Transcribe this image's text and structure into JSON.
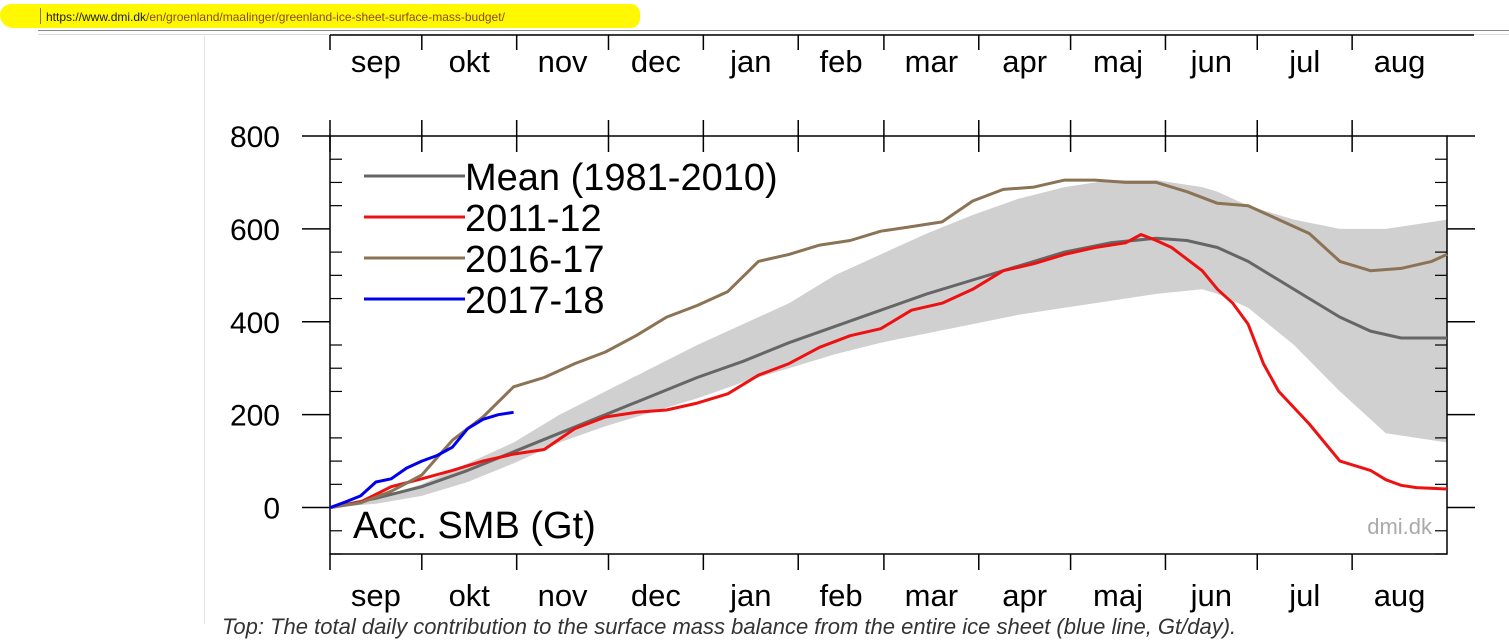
{
  "url_bar": {
    "domain": "https://www.dmi.dk",
    "path": "/en/groenland/maalinger/greenland-ice-sheet-surface-mass-budget/",
    "highlight_color": "#fff800"
  },
  "chart_data": {
    "type": "line",
    "months": [
      "sep",
      "okt",
      "nov",
      "dec",
      "jan",
      "feb",
      "mar",
      "apr",
      "maj",
      "jun",
      "jul",
      "aug"
    ],
    "ylim": [
      -100,
      800
    ],
    "xlim": [
      0,
      365
    ],
    "yticks": [
      0,
      200,
      400,
      600,
      800
    ],
    "ylabel": "Acc. SMB (Gt)",
    "watermark": "dmi.dk",
    "grid": false,
    "legend_position": "top-left",
    "band": {
      "color": "#d0d0d0",
      "x": [
        0,
        15,
        30,
        45,
        60,
        75,
        90,
        105,
        120,
        135,
        150,
        165,
        180,
        195,
        210,
        225,
        240,
        255,
        270,
        285,
        290,
        300,
        315,
        330,
        345,
        365
      ],
      "upper": [
        0,
        20,
        50,
        95,
        140,
        200,
        250,
        300,
        350,
        395,
        440,
        500,
        545,
        590,
        630,
        665,
        690,
        705,
        705,
        690,
        680,
        650,
        620,
        600,
        600,
        620
      ],
      "lower": [
        0,
        8,
        25,
        55,
        95,
        140,
        175,
        205,
        235,
        270,
        300,
        330,
        355,
        375,
        395,
        415,
        430,
        445,
        460,
        470,
        460,
        430,
        350,
        250,
        160,
        140
      ]
    },
    "series": [
      {
        "name": "Mean (1981-2010)",
        "color": "#666666",
        "width": 3,
        "x": [
          0,
          15,
          30,
          45,
          60,
          75,
          90,
          105,
          120,
          135,
          150,
          165,
          180,
          195,
          210,
          225,
          240,
          255,
          270,
          280,
          290,
          300,
          310,
          320,
          330,
          340,
          350,
          365
        ],
        "y": [
          0,
          20,
          45,
          80,
          120,
          160,
          200,
          240,
          280,
          315,
          355,
          390,
          425,
          460,
          490,
          520,
          550,
          570,
          580,
          575,
          560,
          530,
          490,
          450,
          410,
          380,
          365,
          365
        ]
      },
      {
        "name": "2011-12",
        "color": "#ee1111",
        "width": 3,
        "x": [
          0,
          10,
          20,
          30,
          40,
          50,
          60,
          70,
          80,
          90,
          100,
          110,
          120,
          130,
          140,
          150,
          160,
          170,
          180,
          190,
          200,
          210,
          220,
          230,
          240,
          250,
          260,
          265,
          270,
          275,
          280,
          285,
          290,
          295,
          300,
          305,
          310,
          320,
          330,
          340,
          345,
          350,
          355,
          365
        ],
        "y": [
          0,
          12,
          45,
          62,
          80,
          100,
          115,
          125,
          170,
          195,
          205,
          210,
          225,
          245,
          285,
          310,
          345,
          370,
          385,
          425,
          440,
          470,
          510,
          525,
          545,
          560,
          570,
          588,
          575,
          560,
          535,
          510,
          470,
          440,
          395,
          310,
          250,
          180,
          100,
          80,
          60,
          48,
          43,
          40
        ]
      },
      {
        "name": "2016-17",
        "color": "#8b7355",
        "width": 3,
        "x": [
          0,
          10,
          20,
          30,
          40,
          50,
          60,
          70,
          80,
          90,
          100,
          110,
          120,
          130,
          140,
          150,
          160,
          170,
          180,
          190,
          200,
          210,
          220,
          230,
          240,
          250,
          260,
          270,
          280,
          290,
          300,
          310,
          320,
          330,
          340,
          350,
          360,
          365
        ],
        "y": [
          0,
          10,
          35,
          70,
          145,
          195,
          260,
          280,
          310,
          335,
          370,
          410,
          435,
          465,
          530,
          545,
          565,
          575,
          595,
          605,
          615,
          660,
          685,
          690,
          705,
          705,
          700,
          700,
          680,
          655,
          650,
          620,
          590,
          530,
          510,
          515,
          530,
          545
        ]
      },
      {
        "name": "2017-18",
        "color": "#0000ee",
        "width": 3,
        "x": [
          0,
          5,
          10,
          15,
          20,
          25,
          30,
          35,
          40,
          45,
          50,
          55,
          60
        ],
        "y": [
          0,
          12,
          25,
          55,
          62,
          85,
          100,
          112,
          130,
          170,
          190,
          200,
          205
        ]
      }
    ]
  },
  "caption": {
    "text": "Top: The total daily contribution to the surface mass balance from the entire ice sheet (blue line, Gt/day)."
  }
}
